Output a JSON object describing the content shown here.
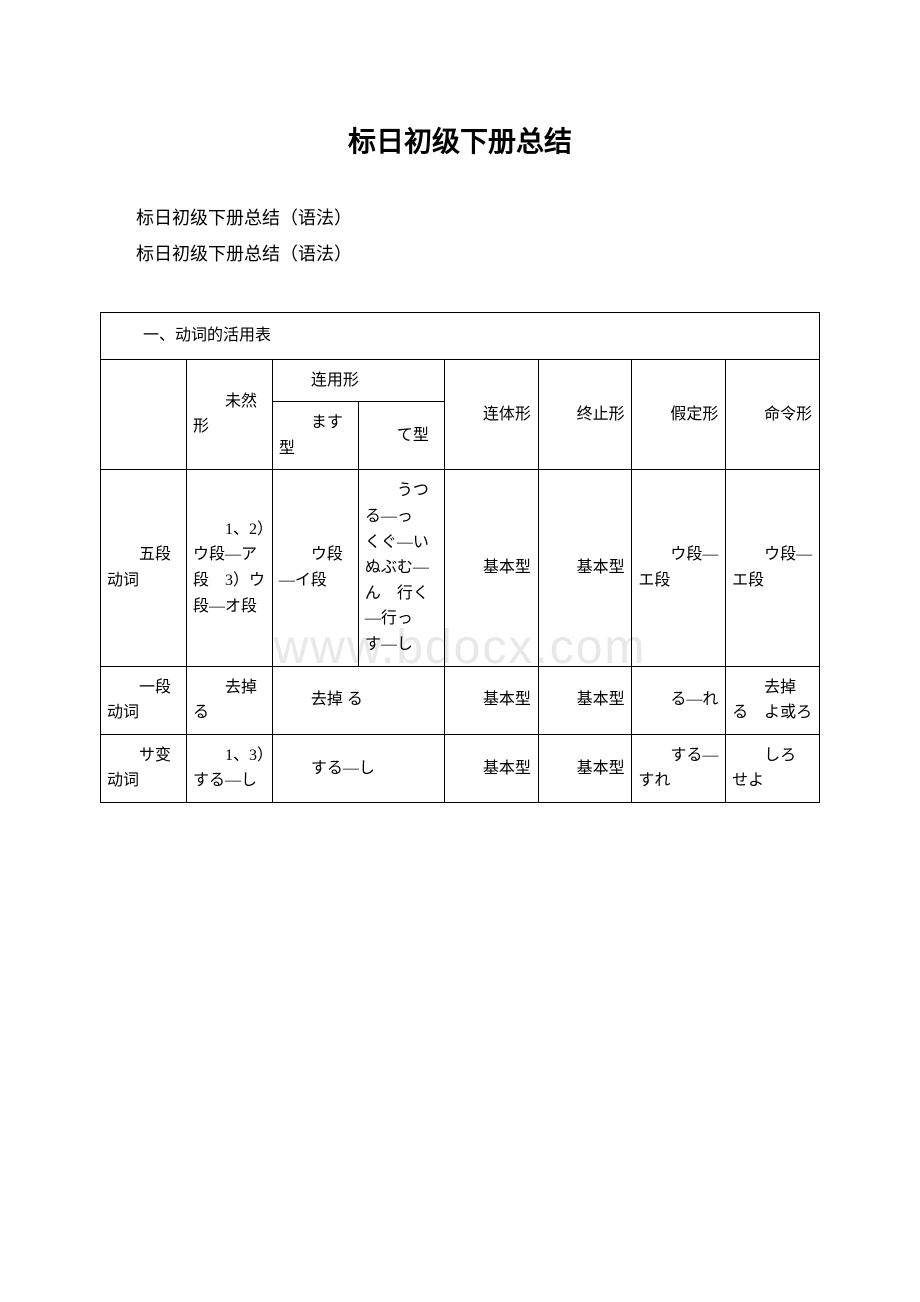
{
  "title": "标日初级下册总结",
  "subtitle1": "标日初级下册总结（语法）",
  "subtitle2": "标日初级下册总结（语法）",
  "watermark": "www.bdocx.com",
  "table": {
    "sectionHeader": "一、动词的活用表",
    "headers": {
      "mizenkei": "未然形",
      "renyoukei": "连用形",
      "masu": "ます型",
      "te": "て型",
      "rentaikei": "连体形",
      "shuushikei": "终止形",
      "kateikei": "假定形",
      "meireikei": "命令形"
    },
    "rows": [
      {
        "name": "五段动词",
        "mizen": "1、2）ウ段—ア段　3）ウ段—オ段",
        "masu": "ウ段—イ段",
        "te": "うつる—っ　くぐ—い　ぬぶむ—ん　行く—行っ　す—し",
        "rentai": "基本型",
        "shuushi": "基本型",
        "katei": "ウ段—エ段",
        "meirei": "ウ段—エ段"
      },
      {
        "name": "一段动词",
        "mizen": "去掉 る",
        "renyou": "去掉 る",
        "rentai": "基本型",
        "shuushi": "基本型",
        "katei": "る—れ",
        "meirei": "去掉 る　よ或ろ"
      },
      {
        "name": "サ变动词",
        "mizen": "1、3）する—し",
        "renyou": "する—し",
        "rentai": "基本型",
        "shuushi": "基本型",
        "katei": "する—すれ",
        "meirei": "しろ　せよ"
      }
    ]
  }
}
